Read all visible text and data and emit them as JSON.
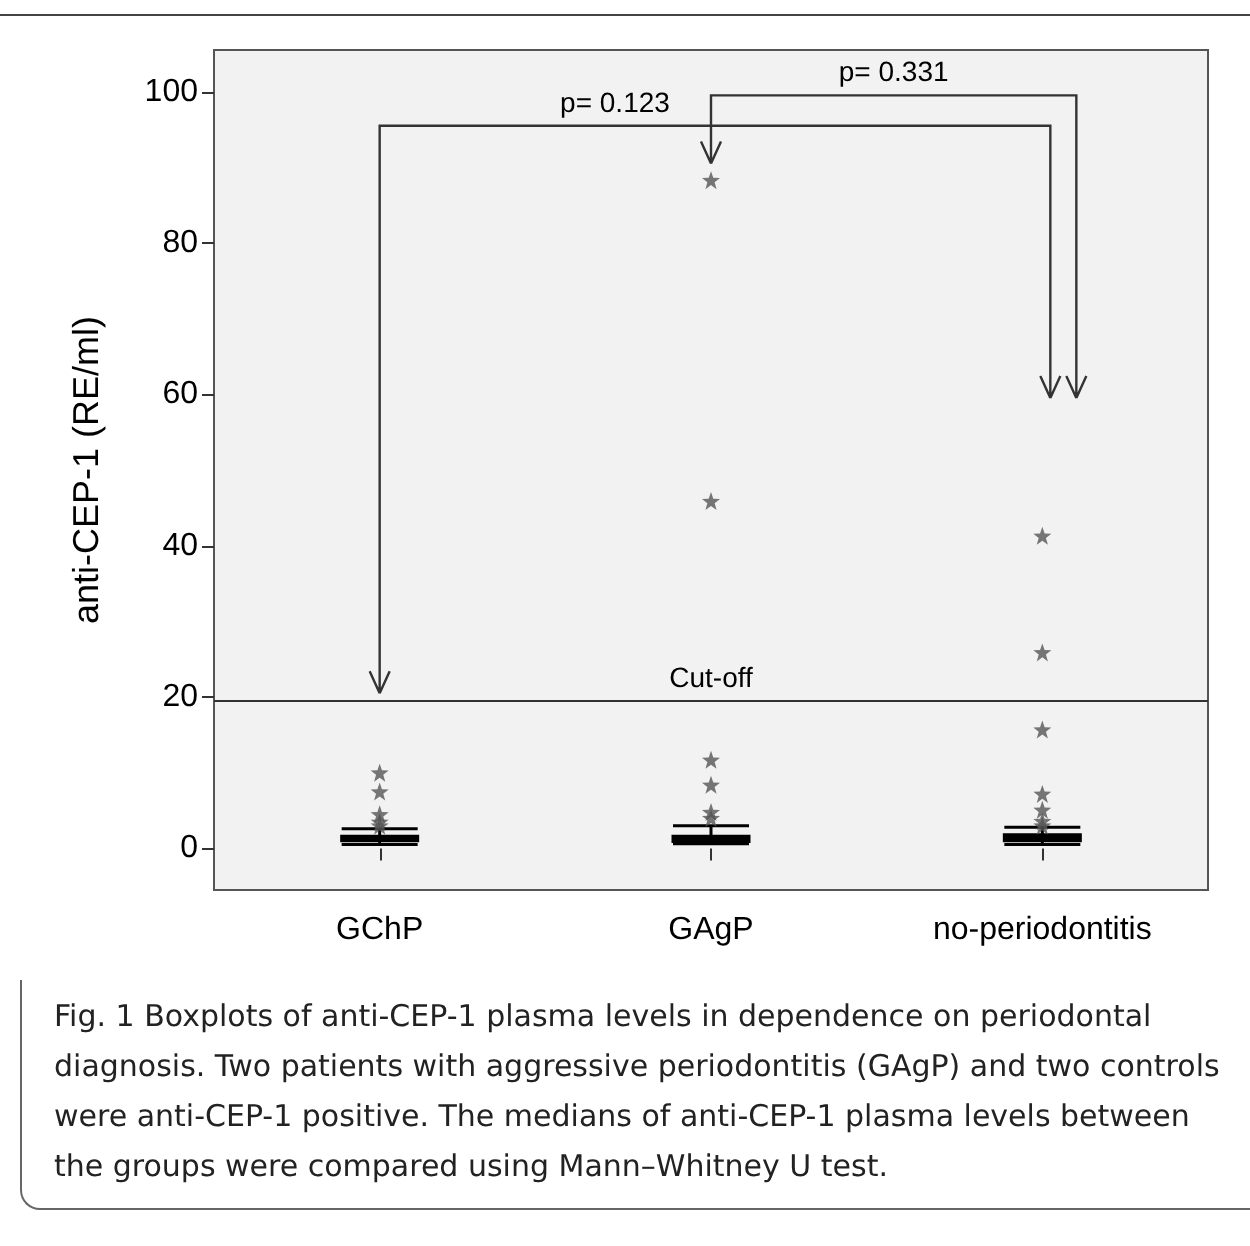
{
  "chart_data": {
    "type": "box",
    "ylabel": "anti-CEP-1 (RE/ml)",
    "categories": [
      "GChP",
      "GAgP",
      "no-periodontitis"
    ],
    "boxes": [
      {
        "low": 0.5,
        "q1": 1.0,
        "median": 1.3,
        "q3": 1.6,
        "high": 2.6,
        "outliers": [
          3.0,
          3.5,
          4.5,
          7.5,
          10
        ]
      },
      {
        "low": 0.6,
        "q1": 0.9,
        "median": 1.2,
        "q3": 1.6,
        "high": 3.0,
        "outliers": [
          4.0,
          4.8,
          8.4,
          11.7,
          45.9,
          88.3
        ]
      },
      {
        "low": 0.5,
        "q1": 1.0,
        "median": 1.4,
        "q3": 1.8,
        "high": 2.8,
        "outliers": [
          3.0,
          3.6,
          5.1,
          7.2,
          15.7,
          25.9,
          41.3
        ]
      }
    ],
    "ylim": [
      -5.5,
      105.5
    ],
    "yticks": [
      0,
      20,
      40,
      60,
      80,
      100
    ],
    "marker": "star",
    "ref_lines": [
      {
        "axis": "y",
        "value": 19.5,
        "label": "Cut-off"
      }
    ],
    "annotations": [
      "p= 0.123",
      "p= 0.331",
      "Fig. 1  Boxplots of anti-CEP-1 plasma levels in dependence on periodontal diagnosis. Two patients with aggressive periodontitis (GAgP) and two controls were anti-CEP-1 positive. The medians of anti-CEP-1 plasma levels between the groups were compared using Mann–Whitney U test."
    ]
  }
}
